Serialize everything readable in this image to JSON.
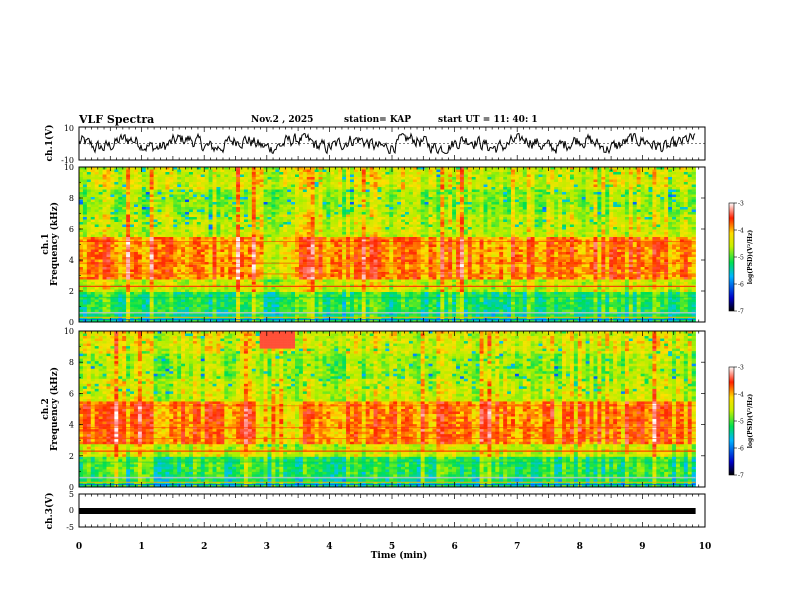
{
  "header": {
    "title": "VLF Spectra",
    "date": "Nov.2 , 2025",
    "station": "station= KAP",
    "start": "start UT =  11: 40: 1"
  },
  "chart_data": [
    {
      "name": "ch.1 waveform",
      "type": "line",
      "ylabel": "ch.1(V)",
      "ylim": [
        -10,
        10
      ],
      "yticks": [
        "10",
        "-10"
      ],
      "xlim": [
        0,
        10
      ],
      "series_description": "noisy VLF time-series spanning approx -6 V to +6 V"
    },
    {
      "name": "ch.1 spectrogram",
      "type": "heatmap",
      "ylabel_top": "ch.1",
      "ylabel": "Frequency (kHz)",
      "ylim": [
        0,
        10
      ],
      "yticks": [
        "0",
        "2",
        "4",
        "6",
        "8",
        "10"
      ],
      "colorbar": {
        "label": "log(PSD)(V²/Hz)",
        "range": [
          -7,
          -3
        ],
        "ticks": [
          "-3",
          "-4",
          "-5",
          "-6",
          "-7"
        ]
      }
    },
    {
      "name": "ch.2 spectrogram",
      "type": "heatmap",
      "ylabel_top": "ch.2",
      "ylabel": "Frequency (kHz)",
      "ylim": [
        0,
        10
      ],
      "yticks": [
        "0",
        "2",
        "4",
        "6",
        "8",
        "10"
      ],
      "colorbar": {
        "label": "log(PSD)(V²/Hz)",
        "range": [
          -7,
          -3
        ],
        "ticks": [
          "-3",
          "-4",
          "-5",
          "-6",
          "-7"
        ]
      }
    },
    {
      "name": "ch.3 trace",
      "type": "line",
      "ylabel": "ch.3(V)",
      "ylim": [
        -5,
        5
      ],
      "yticks": [
        "5",
        "0",
        "-5"
      ],
      "series_description": "flat trace near -1 V"
    }
  ],
  "xaxis": {
    "label": "Time (min)",
    "ticks": [
      "0",
      "1",
      "2",
      "3",
      "4",
      "5",
      "6",
      "7",
      "8",
      "9",
      "10"
    ],
    "data_end_min": 9.85
  }
}
